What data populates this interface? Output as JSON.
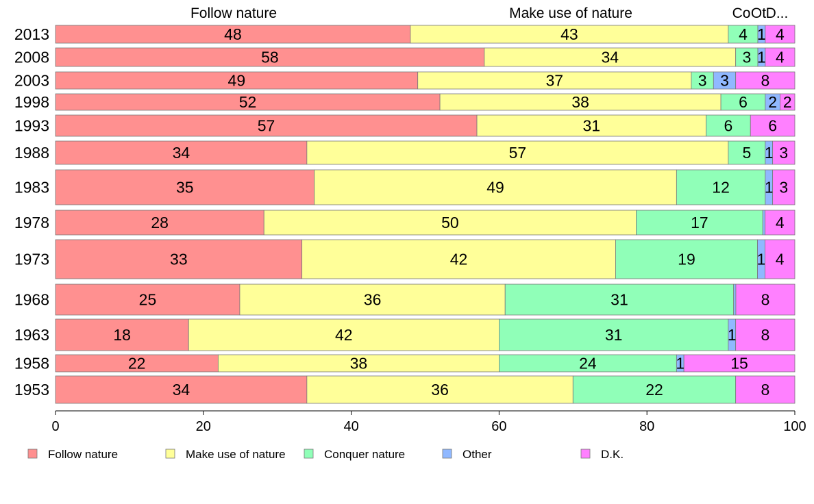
{
  "chart_data": {
    "type": "bar",
    "orientation": "horizontal",
    "stacked": true,
    "top_labels": [
      "Follow nature",
      "Make use of nature",
      "Co",
      "Ot",
      "D..."
    ],
    "categories": [
      "2013",
      "2008",
      "2003",
      "1998",
      "1993",
      "1988",
      "1983",
      "1978",
      "1973",
      "1968",
      "1963",
      "1958",
      "1953"
    ],
    "series": [
      {
        "name": "Follow nature",
        "color": "#ff9090",
        "values": [
          48,
          58,
          49,
          52,
          57,
          34,
          35,
          28,
          33,
          25,
          18,
          22,
          34
        ],
        "labels": [
          "48",
          "58",
          "49",
          "52",
          "57",
          "34",
          "35",
          "28",
          "33",
          "25",
          "18",
          "22",
          "34"
        ]
      },
      {
        "name": "Make use of nature",
        "color": "#ffff99",
        "values": [
          43,
          34,
          37,
          38,
          31,
          57,
          49,
          50,
          42,
          36,
          42,
          38,
          36
        ],
        "labels": [
          "43",
          "34",
          "37",
          "38",
          "31",
          "57",
          "49",
          "50",
          "42",
          "36",
          "42",
          "38",
          "36"
        ]
      },
      {
        "name": "Conquer nature",
        "color": "#90ffb8",
        "values": [
          4,
          3,
          3,
          6,
          6,
          5,
          12,
          17,
          19,
          31,
          31,
          24,
          22
        ],
        "labels": [
          "4",
          "3",
          "3",
          "6",
          "6",
          "5",
          "12",
          "17",
          "19",
          "31",
          "31",
          "24",
          "22"
        ]
      },
      {
        "name": "Other",
        "color": "#90b8ff",
        "values": [
          1,
          1,
          3,
          2,
          0,
          1,
          1,
          0.3,
          1,
          0.3,
          1,
          1,
          0
        ],
        "labels": [
          "1",
          "1",
          "3",
          "2",
          "",
          "1",
          "1",
          "",
          "1",
          "",
          "1",
          "1",
          ""
        ]
      },
      {
        "name": "D.K.",
        "color": "#ff80ff",
        "values": [
          4,
          4,
          8,
          2,
          6,
          3,
          3,
          4,
          4,
          8,
          8,
          15,
          8
        ],
        "labels": [
          "4",
          "4",
          "8",
          "2",
          "6",
          "3",
          "3",
          "4",
          "4",
          "8",
          "8",
          "15",
          "8"
        ]
      }
    ],
    "xlim": [
      0,
      100
    ],
    "xticks": [
      "0",
      "20",
      "40",
      "60",
      "80",
      "100"
    ],
    "xlabel": "",
    "ylabel": "",
    "title": "",
    "grid": false,
    "legend_position": "bottom",
    "legend": [
      "Follow nature",
      "Make use of nature",
      "Conquer nature",
      "Other",
      "D.K."
    ]
  }
}
